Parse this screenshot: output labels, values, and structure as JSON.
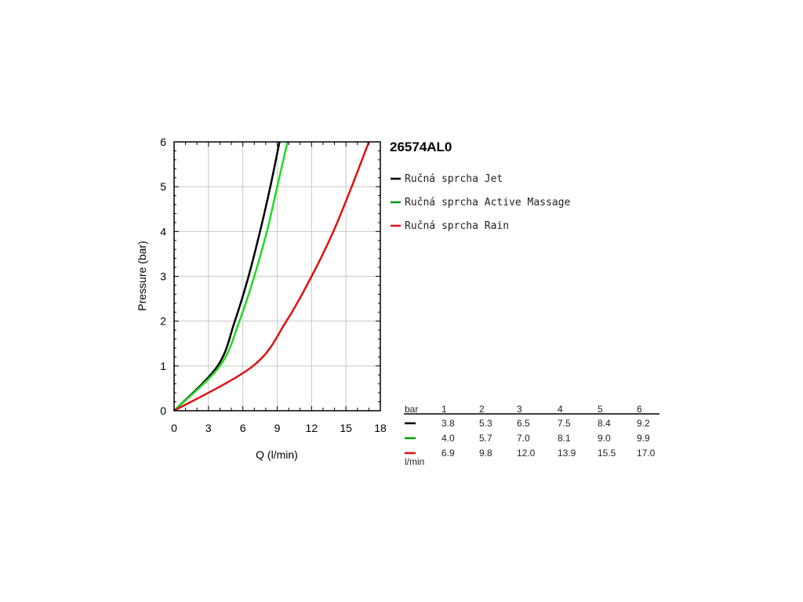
{
  "chart_data": {
    "type": "line",
    "title": "26574AL0",
    "xlabel": "Q (l/min)",
    "ylabel": "Pressure (bar)",
    "xlim": [
      0,
      18
    ],
    "ylim": [
      0,
      6
    ],
    "xticks": [
      0,
      3,
      6,
      9,
      12,
      15,
      18
    ],
    "yticks": [
      0,
      1,
      2,
      3,
      4,
      5,
      6
    ],
    "grid": true,
    "legend_position": "right",
    "series": [
      {
        "name": "Ručná sprcha Jet",
        "color": "#000000",
        "x": [
          0,
          3.8,
          5.3,
          6.5,
          7.5,
          8.4,
          9.2
        ],
        "y": [
          0,
          1,
          2,
          3,
          4,
          5,
          6
        ]
      },
      {
        "name": "Ručná sprcha Active Massage",
        "color": "#1fdb1f",
        "x": [
          0,
          4.0,
          5.7,
          7.0,
          8.1,
          9.0,
          9.9
        ],
        "y": [
          0,
          1,
          2,
          3,
          4,
          5,
          6
        ]
      },
      {
        "name": "Ručná sprcha Rain",
        "color": "#e01010",
        "x": [
          0,
          6.9,
          9.8,
          12.0,
          13.9,
          15.5,
          17.0
        ],
        "y": [
          0,
          1,
          2,
          3,
          4,
          5,
          6
        ]
      }
    ],
    "legend_swatch_colors": [
      "#000000",
      "#009900",
      "#e01010"
    ],
    "table": {
      "header_label": "bar",
      "columns": [
        "1",
        "2",
        "3",
        "4",
        "5",
        "6"
      ],
      "rows": [
        {
          "color": "#000000",
          "values": [
            "3.8",
            "5.3",
            "6.5",
            "7.5",
            "8.4",
            "9.2"
          ]
        },
        {
          "color": "#009900",
          "values": [
            "4.0",
            "5.7",
            "7.0",
            "8.1",
            "9.0",
            "9.9"
          ]
        },
        {
          "color": "#e01010",
          "values": [
            "6.9",
            "9.8",
            "12.0",
            "13.9",
            "15.5",
            "17.0"
          ]
        }
      ],
      "unit_label": "l/min"
    }
  }
}
